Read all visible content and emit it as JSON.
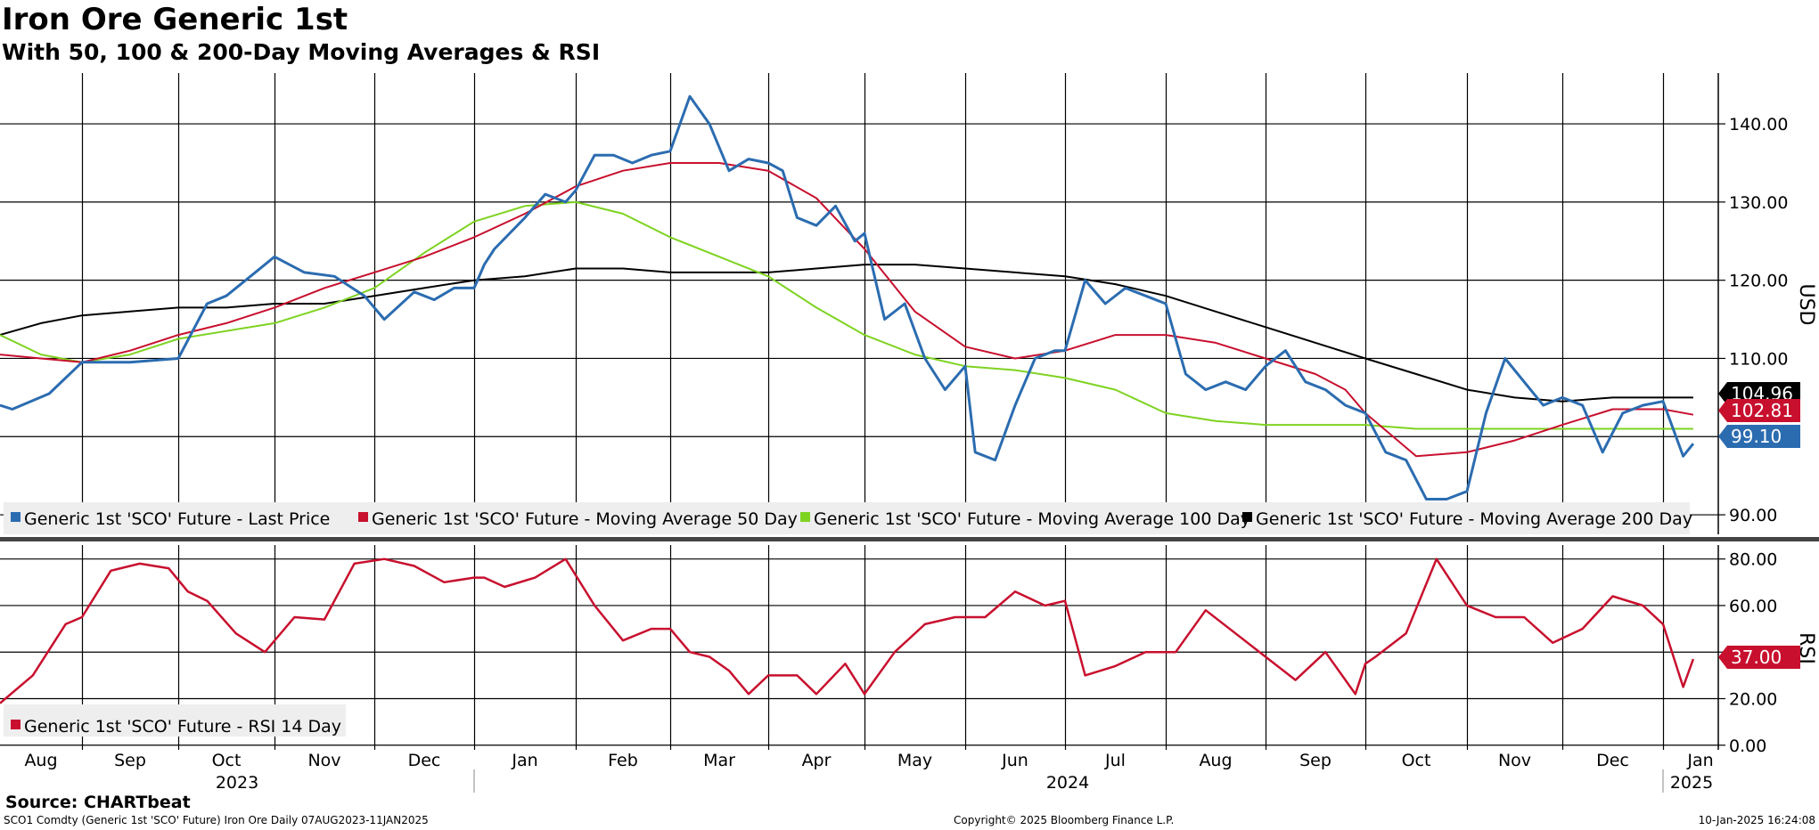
{
  "chart_data": {
    "type": "line",
    "title": "Iron Ore Generic 1st",
    "subtitle": "With 50, 100 & 200-Day Moving Averages & RSI",
    "x_range": [
      "07AUG2023",
      "11JAN2025"
    ],
    "months": [
      "Aug",
      "Sep",
      "Oct",
      "Nov",
      "Dec",
      "Jan",
      "Feb",
      "Mar",
      "Apr",
      "May",
      "Jun",
      "Jul",
      "Aug",
      "Sep",
      "Oct",
      "Nov",
      "Dec",
      "Jan"
    ],
    "years": [
      "2023",
      "2024",
      "2025"
    ],
    "price_panel": {
      "ylabel": "USD",
      "ylim": [
        87.5,
        146.5
      ],
      "ticks": [
        "90.00",
        "100.00",
        "110.00",
        "120.00",
        "130.00",
        "140.00"
      ],
      "legend": [
        {
          "label": "Generic 1st 'SCO' Future - Last Price",
          "color": "#2b6cb0"
        },
        {
          "label": "Generic 1st 'SCO' Future - Moving Average 50 Day",
          "color": "#c8102e"
        },
        {
          "label": "Generic 1st 'SCO' Future - Moving Average 100 Day",
          "color": "#7ed321"
        },
        {
          "label": "Generic 1st 'SCO' Future - Moving Average 200 Day",
          "color": "#000000"
        }
      ],
      "series": [
        {
          "name": "Last Price",
          "color": "#2b6cb0",
          "x": [
            0,
            0.15,
            0.6,
            1.0,
            1.5,
            2.0,
            2.3,
            2.5,
            2.8,
            3.0,
            3.3,
            3.6,
            3.9,
            4.1,
            4.4,
            4.6,
            4.8,
            5.0,
            5.1,
            5.2,
            5.35,
            5.5,
            5.7,
            5.9,
            6.0,
            6.2,
            6.4,
            6.6,
            6.8,
            7.0,
            7.2,
            7.4,
            7.6,
            7.8,
            8.0,
            8.15,
            8.3,
            8.5,
            8.7,
            8.9,
            9.0,
            9.2,
            9.4,
            9.6,
            9.8,
            10.0,
            10.1,
            10.3,
            10.5,
            10.7,
            10.9,
            11.0,
            11.2,
            11.4,
            11.6,
            11.8,
            12.0,
            12.2,
            12.4,
            12.6,
            12.8,
            13.0,
            13.2,
            13.4,
            13.6,
            13.8,
            14.0,
            14.2,
            14.4,
            14.6,
            14.8,
            15.0,
            15.2,
            15.4,
            15.6,
            15.8,
            16.0,
            16.2,
            16.4,
            16.6,
            16.8,
            17.0,
            17.2,
            17.3
          ],
          "y": [
            104,
            103.5,
            105.5,
            109.5,
            109.5,
            110,
            117,
            118,
            121,
            123,
            121,
            120.5,
            118,
            115,
            118.5,
            117.5,
            119,
            119,
            122,
            124,
            126,
            128,
            131,
            130,
            131.5,
            136,
            136,
            135,
            136,
            136.5,
            143.5,
            140,
            134,
            135.5,
            135,
            134,
            128,
            127,
            129.5,
            125,
            126,
            115,
            117,
            110,
            106,
            109,
            98,
            97,
            104,
            110,
            111,
            111,
            120,
            117,
            119,
            118,
            117,
            108,
            106,
            107,
            106,
            109,
            111,
            107,
            106,
            104,
            103,
            98,
            97,
            92,
            92,
            93,
            103,
            110,
            107,
            104,
            105,
            104,
            98,
            103,
            104,
            104.5,
            97.5,
            99.1
          ]
        },
        {
          "name": "Moving Average 50 Day",
          "color": "#c8102e",
          "x": [
            0,
            0.5,
            1.0,
            1.5,
            2.0,
            2.5,
            3.0,
            3.5,
            4.0,
            4.5,
            5.0,
            5.5,
            6.0,
            6.5,
            7.0,
            7.5,
            8.0,
            8.5,
            9.0,
            9.5,
            10.0,
            10.5,
            11.0,
            11.5,
            12.0,
            12.5,
            13.0,
            13.5,
            13.8,
            14.0,
            14.5,
            15.0,
            15.5,
            16.0,
            16.5,
            17.0,
            17.3
          ],
          "y": [
            110.5,
            110,
            109.5,
            111,
            113,
            114.5,
            116.5,
            119,
            121,
            123,
            125.5,
            128.5,
            132,
            134,
            135,
            135,
            134,
            130.5,
            124,
            116,
            111.5,
            110,
            111,
            113,
            113,
            112,
            110,
            108,
            106,
            103,
            97.5,
            98,
            99.5,
            101.5,
            103.5,
            103.5,
            102.8
          ]
        },
        {
          "name": "Moving Average 100 Day",
          "color": "#7ed321",
          "x": [
            0,
            0.5,
            1.0,
            1.5,
            2.0,
            2.5,
            3.0,
            3.5,
            4.0,
            4.5,
            5.0,
            5.5,
            6.0,
            6.5,
            7.0,
            7.5,
            8.0,
            8.5,
            9.0,
            9.5,
            10.0,
            10.5,
            11.0,
            11.5,
            12.0,
            12.5,
            13.0,
            13.5,
            14.0,
            14.5,
            15.0,
            15.5,
            16.0,
            16.5,
            17.0,
            17.3
          ],
          "y": [
            113,
            110.5,
            109.5,
            110.5,
            112.5,
            113.5,
            114.5,
            116.5,
            119,
            123.5,
            127.5,
            129.5,
            130,
            128.5,
            125.5,
            123,
            120.5,
            116.5,
            113,
            110.5,
            109,
            108.5,
            107.5,
            106,
            103,
            102,
            101.5,
            101.5,
            101.5,
            101,
            101,
            101,
            101,
            101,
            101,
            101
          ]
        },
        {
          "name": "Moving Average 200 Day",
          "color": "#000000",
          "x": [
            0,
            0.5,
            1.0,
            1.5,
            2.0,
            2.5,
            3.0,
            3.5,
            4.0,
            4.5,
            5.0,
            5.5,
            6.0,
            6.5,
            7.0,
            7.5,
            8.0,
            8.5,
            9.0,
            9.5,
            10.0,
            10.5,
            11.0,
            11.5,
            12.0,
            12.5,
            13.0,
            13.5,
            14.0,
            14.5,
            15.0,
            15.5,
            16.0,
            16.5,
            17.0,
            17.3
          ],
          "y": [
            113,
            114.5,
            115.5,
            116,
            116.5,
            116.5,
            117,
            117,
            118,
            119,
            120,
            120.5,
            121.5,
            121.5,
            121,
            121,
            121,
            121.5,
            122,
            122,
            121.5,
            121,
            120.5,
            119.5,
            118,
            116,
            114,
            112,
            110,
            108,
            106,
            105,
            104.5,
            105,
            105,
            105
          ]
        }
      ],
      "last_values": [
        {
          "text": "104.96",
          "color": "#000000"
        },
        {
          "text": "102.81",
          "color": "#c8102e"
        },
        {
          "text": "99.10",
          "color": "#2b6cb0"
        }
      ]
    },
    "rsi_panel": {
      "ylabel": "RSI",
      "ylim": [
        -2,
        86
      ],
      "ticks": [
        "0.00",
        "20.00",
        "40.00",
        "60.00",
        "80.00"
      ],
      "legend": [
        {
          "label": "Generic 1st 'SCO' Future - RSI 14 Day",
          "color": "#c8102e"
        }
      ],
      "series": [
        {
          "name": "RSI 14 Day",
          "color": "#c8102e",
          "x": [
            0,
            0.4,
            0.8,
            1.0,
            1.3,
            1.6,
            1.9,
            2.1,
            2.3,
            2.6,
            2.9,
            3.2,
            3.5,
            3.8,
            4.1,
            4.4,
            4.7,
            5.0,
            5.1,
            5.3,
            5.6,
            5.9,
            6.2,
            6.5,
            6.8,
            7.0,
            7.2,
            7.4,
            7.6,
            7.8,
            8.0,
            8.3,
            8.5,
            8.8,
            9.0,
            9.3,
            9.6,
            9.9,
            10.2,
            10.5,
            10.8,
            11.0,
            11.2,
            11.5,
            11.8,
            12.1,
            12.4,
            12.7,
            13.0,
            13.3,
            13.6,
            13.9,
            14.0,
            14.1,
            14.4,
            14.7,
            15.0,
            15.3,
            15.6,
            15.9,
            16.2,
            16.5,
            16.8,
            17.0,
            17.2,
            17.3
          ],
          "y": [
            18,
            30,
            52,
            55,
            75,
            78,
            76,
            66,
            62,
            48,
            40,
            55,
            54,
            78,
            80,
            77,
            70,
            72,
            72,
            68,
            72,
            80,
            60,
            45,
            50,
            50,
            40,
            38,
            32,
            22,
            30,
            30,
            22,
            35,
            22,
            40,
            52,
            55,
            55,
            66,
            60,
            62,
            30,
            34,
            40,
            40,
            58,
            48,
            38,
            28,
            40,
            22,
            35,
            38,
            48,
            80,
            60,
            55,
            55,
            44,
            50,
            64,
            60,
            52,
            25,
            37
          ]
        }
      ],
      "last_values": [
        {
          "text": "37.00",
          "color": "#c8102e"
        }
      ]
    },
    "source_text": "Source: CHARTbeat",
    "footer_left": "SCO1 Comdty (Generic 1st 'SCO' Future) Iron Ore  Daily 07AUG2023-11JAN2025",
    "footer_center": "Copyright© 2025 Bloomberg Finance L.P.",
    "footer_right": "10-Jan-2025 16:24:08"
  }
}
